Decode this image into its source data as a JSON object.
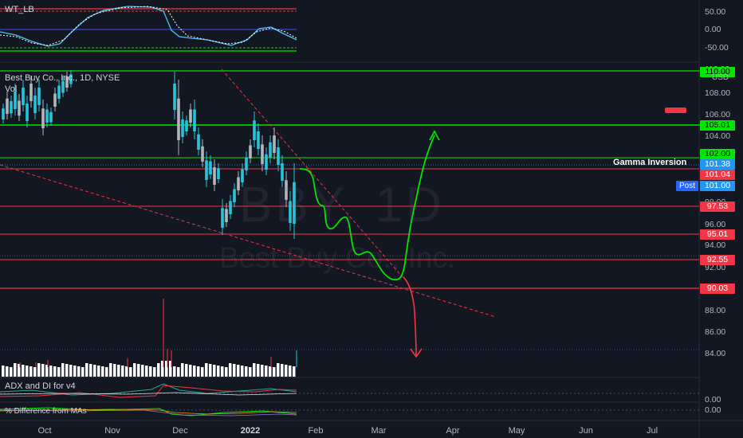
{
  "header": {
    "symbol_title": "Best Buy Co., Inc., 1D, NYSE",
    "vol_label": "Vol",
    "currency": "USD",
    "watermark_symbol": "BBY, 1D",
    "watermark_name": "Best Buy Co., Inc."
  },
  "indicators": {
    "wt_label": "WT_LB",
    "adx_label": "ADX and DI for v4",
    "pct_label": "% Difference from MAs",
    "wt_ticks": [
      "50.00",
      "0.00",
      "-50.00"
    ],
    "adx_tick": "0.00",
    "pct_tick": "0.00"
  },
  "price_axis": {
    "ticks": [
      "110.00",
      "108.00",
      "106.00",
      "104.00",
      "98.00",
      "96.00",
      "94.00",
      "92.00",
      "88.00",
      "86.00",
      "84.00"
    ]
  },
  "levels": [
    {
      "price": "105.01",
      "color": "#00e600"
    },
    {
      "price": "102.00",
      "color": "#00e600"
    },
    {
      "price": "101.38",
      "color": "#2196f3"
    },
    {
      "price": "101.04",
      "color": "#f23645"
    },
    {
      "price": "101.00",
      "color": "#2196f3"
    },
    {
      "price": "97.53",
      "color": "#f23645"
    },
    {
      "price": "95.01",
      "color": "#f23645"
    },
    {
      "price": "92.55",
      "color": "#f23645"
    },
    {
      "price": "90.03",
      "color": "#f23645"
    },
    {
      "price": "110.00",
      "color": "#00e600"
    }
  ],
  "annotation": {
    "gamma_label": "Gamma Inversion",
    "post_label": "Post"
  },
  "time_axis": [
    "Oct",
    "Nov",
    "Dec",
    "2022",
    "Feb",
    "Mar",
    "Apr",
    "May",
    "Jun",
    "Jul"
  ],
  "chart_data": {
    "type": "candlestick",
    "title": "Best Buy Co., Inc., 1D, NYSE",
    "ylim": [
      83,
      111
    ],
    "y_ticks": [
      84,
      86,
      88,
      92,
      94,
      96,
      98,
      104,
      106,
      108,
      110
    ],
    "x_ticks": [
      "Oct",
      "Nov",
      "Dec",
      "2022",
      "Feb",
      "Mar",
      "Apr",
      "May",
      "Jun",
      "Jul"
    ],
    "horizontal_levels": [
      110.0,
      105.01,
      102.0,
      101.38,
      101.04,
      97.53,
      95.01,
      92.55,
      90.03
    ],
    "last_price": 101.38,
    "post_price": 101.0,
    "colors": {
      "up": "#26c6da",
      "down": "#b2b5be",
      "support": "#f23645",
      "resistance": "#00e600"
    }
  }
}
